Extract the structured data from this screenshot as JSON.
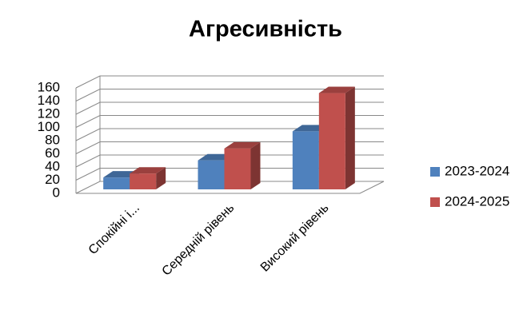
{
  "chart_data": {
    "type": "bar3d",
    "title": "Агресивність",
    "categories": [
      "Спокійні і...",
      "Середній рівень",
      "Високий рівень"
    ],
    "series": [
      {
        "name": "2023-2024",
        "color": "#4f81bd",
        "values": [
          18,
          44,
          88
        ]
      },
      {
        "name": "2024-2025",
        "color": "#c0504d",
        "values": [
          24,
          62,
          146
        ]
      }
    ],
    "ylim": [
      0,
      160
    ],
    "yticks": [
      0,
      20,
      40,
      60,
      80,
      100,
      120,
      140,
      160
    ],
    "grid": true,
    "legend": "right"
  }
}
